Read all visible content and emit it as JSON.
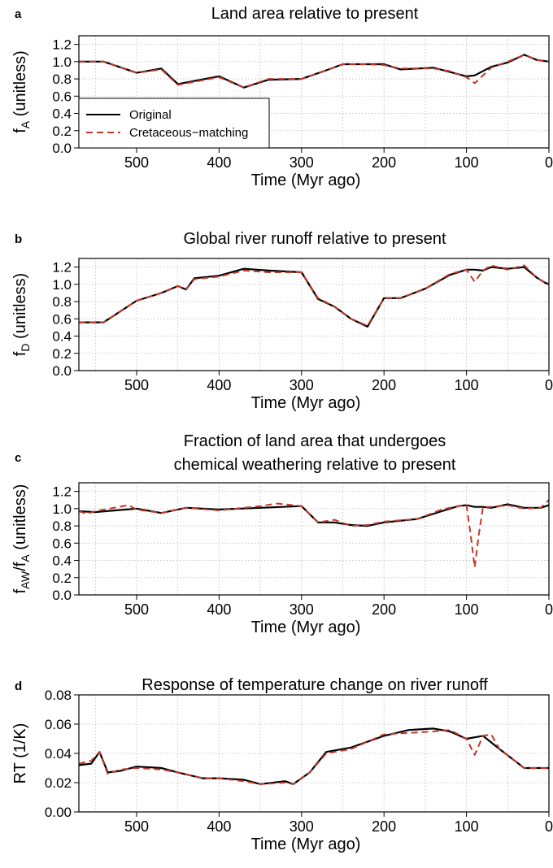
{
  "colors": {
    "original": "#000000",
    "cretaceous": "#c0392b",
    "grid": "#bbbbbb"
  },
  "legend": {
    "items": [
      {
        "label": "Original",
        "style": "solid"
      },
      {
        "label": "Cretaceous−matching",
        "style": "dashed"
      }
    ]
  },
  "chart_data": [
    {
      "type": "line",
      "panel_label": "a",
      "title": [
        "Land area relative to present"
      ],
      "xlabel": "Time (Myr ago)",
      "ylabel": {
        "base": "f",
        "sub": "A",
        "rest": " (unitless)"
      },
      "xlim": [
        570,
        0
      ],
      "ylim": [
        0,
        1.3
      ],
      "xticks": [
        500,
        400,
        300,
        200,
        100,
        0
      ],
      "yticks": [
        "0.0",
        "0.2",
        "0.4",
        "0.6",
        "0.8",
        "1.0",
        "1.2"
      ],
      "grid": true,
      "legend": "bottom-left",
      "series": [
        {
          "name": "Original",
          "style": "solid",
          "x": [
            570,
            540,
            500,
            470,
            450,
            400,
            370,
            340,
            300,
            270,
            250,
            220,
            200,
            180,
            140,
            120,
            100,
            90,
            70,
            50,
            30,
            15,
            0
          ],
          "y": [
            1.0,
            1.0,
            0.87,
            0.92,
            0.74,
            0.83,
            0.7,
            0.79,
            0.8,
            0.9,
            0.97,
            0.97,
            0.97,
            0.91,
            0.93,
            0.88,
            0.83,
            0.84,
            0.94,
            0.99,
            1.08,
            1.02,
            1.0
          ]
        },
        {
          "name": "Cretaceous−matching",
          "style": "dashed",
          "x": [
            570,
            540,
            500,
            470,
            450,
            400,
            370,
            340,
            300,
            270,
            250,
            220,
            200,
            180,
            140,
            120,
            100,
            90,
            70,
            50,
            30,
            15,
            0
          ],
          "y": [
            1.0,
            1.0,
            0.87,
            0.91,
            0.73,
            0.82,
            0.7,
            0.8,
            0.8,
            0.9,
            0.97,
            0.97,
            0.96,
            0.92,
            0.92,
            0.89,
            0.82,
            0.75,
            0.93,
            1.0,
            1.08,
            1.02,
            1.0
          ]
        }
      ]
    },
    {
      "type": "line",
      "panel_label": "b",
      "title": [
        "Global river runoff relative to present"
      ],
      "xlabel": "Time (Myr ago)",
      "ylabel": {
        "base": "f",
        "sub": "D",
        "rest": " (unitless)"
      },
      "xlim": [
        570,
        0
      ],
      "ylim": [
        0,
        1.3
      ],
      "xticks": [
        500,
        400,
        300,
        200,
        100,
        0
      ],
      "yticks": [
        "0.0",
        "0.2",
        "0.4",
        "0.6",
        "0.8",
        "1.0",
        "1.2"
      ],
      "grid": true,
      "series": [
        {
          "name": "Original",
          "style": "solid",
          "x": [
            570,
            540,
            500,
            470,
            450,
            440,
            430,
            400,
            370,
            340,
            300,
            280,
            260,
            240,
            220,
            200,
            180,
            150,
            120,
            100,
            90,
            80,
            70,
            50,
            30,
            15,
            5,
            0
          ],
          "y": [
            0.56,
            0.56,
            0.81,
            0.9,
            0.98,
            0.94,
            1.07,
            1.1,
            1.18,
            1.16,
            1.14,
            0.83,
            0.74,
            0.6,
            0.51,
            0.84,
            0.84,
            0.95,
            1.11,
            1.17,
            1.17,
            1.16,
            1.2,
            1.18,
            1.2,
            1.08,
            1.02,
            1.0
          ]
        },
        {
          "name": "Cretaceous−matching",
          "style": "dashed",
          "x": [
            570,
            540,
            500,
            470,
            450,
            440,
            430,
            400,
            370,
            340,
            300,
            280,
            260,
            240,
            220,
            200,
            180,
            150,
            120,
            100,
            90,
            80,
            70,
            50,
            30,
            15,
            5,
            0
          ],
          "y": [
            0.56,
            0.56,
            0.81,
            0.9,
            0.98,
            0.94,
            1.06,
            1.09,
            1.16,
            1.14,
            1.14,
            0.84,
            0.74,
            0.6,
            0.52,
            0.84,
            0.84,
            0.95,
            1.12,
            1.17,
            1.03,
            1.16,
            1.22,
            1.17,
            1.22,
            1.08,
            1.02,
            1.0
          ]
        }
      ]
    },
    {
      "type": "line",
      "panel_label": "c",
      "title": [
        "Fraction of land area that undergoes",
        "chemical weathering relative to present"
      ],
      "xlabel": "Time (Myr ago)",
      "ylabel": {
        "base": "f",
        "sub": "AW",
        "mid": "/f",
        "sub2": "A",
        "rest": " (unitless)"
      },
      "xlim": [
        570,
        0
      ],
      "ylim": [
        0,
        1.3
      ],
      "xticks": [
        500,
        400,
        300,
        200,
        100,
        0
      ],
      "yticks": [
        "0.0",
        "0.2",
        "0.4",
        "0.6",
        "0.8",
        "1.0",
        "1.2"
      ],
      "grid": true,
      "series": [
        {
          "name": "Original",
          "style": "solid",
          "x": [
            570,
            550,
            500,
            470,
            440,
            400,
            350,
            300,
            280,
            260,
            240,
            220,
            200,
            160,
            130,
            110,
            100,
            90,
            80,
            70,
            50,
            30,
            10,
            0
          ],
          "y": [
            0.97,
            0.96,
            1.0,
            0.95,
            1.01,
            0.99,
            1.01,
            1.03,
            0.84,
            0.84,
            0.81,
            0.8,
            0.84,
            0.88,
            0.97,
            1.03,
            1.04,
            1.02,
            1.02,
            1.01,
            1.05,
            1.01,
            1.01,
            1.04
          ]
        },
        {
          "name": "Cretaceous−matching",
          "style": "dashed",
          "x": [
            570,
            560,
            550,
            510,
            500,
            470,
            440,
            400,
            350,
            330,
            300,
            280,
            260,
            240,
            220,
            200,
            160,
            130,
            110,
            100,
            95,
            90,
            85,
            80,
            70,
            50,
            30,
            10,
            0
          ],
          "y": [
            0.97,
            0.94,
            0.97,
            1.04,
            0.99,
            0.95,
            1.01,
            0.98,
            1.03,
            1.06,
            1.03,
            0.84,
            0.87,
            0.8,
            0.81,
            0.85,
            0.88,
            0.99,
            1.03,
            1.04,
            0.7,
            0.32,
            0.7,
            1.02,
            1.02,
            1.04,
            1.0,
            1.01,
            1.1
          ]
        }
      ]
    },
    {
      "type": "line",
      "panel_label": "d",
      "title": [
        "Response of temperature change on river runoff"
      ],
      "xlabel": "Time (Myr ago)",
      "ylabel": {
        "base": "RT (1/K)"
      },
      "xlim": [
        570,
        0
      ],
      "ylim": [
        0,
        0.08
      ],
      "xticks": [
        500,
        400,
        300,
        200,
        100,
        0
      ],
      "yticks": [
        "0.00",
        "0.02",
        "0.04",
        "0.06",
        "0.08"
      ],
      "grid": true,
      "series": [
        {
          "name": "Original",
          "style": "solid",
          "x": [
            570,
            555,
            545,
            535,
            520,
            500,
            470,
            450,
            420,
            400,
            370,
            350,
            320,
            310,
            290,
            270,
            240,
            200,
            170,
            140,
            120,
            100,
            80,
            60,
            30,
            10,
            0
          ],
          "y": [
            0.032,
            0.033,
            0.041,
            0.027,
            0.028,
            0.031,
            0.03,
            0.027,
            0.023,
            0.023,
            0.022,
            0.019,
            0.021,
            0.019,
            0.027,
            0.041,
            0.044,
            0.052,
            0.056,
            0.057,
            0.055,
            0.05,
            0.052,
            0.043,
            0.03,
            0.03,
            0.03
          ]
        },
        {
          "name": "Cretaceous−matching",
          "style": "dashed",
          "x": [
            570,
            555,
            545,
            535,
            520,
            500,
            470,
            450,
            420,
            400,
            370,
            350,
            320,
            310,
            290,
            270,
            240,
            200,
            170,
            140,
            120,
            100,
            90,
            80,
            70,
            60,
            30,
            10,
            0
          ],
          "y": [
            0.033,
            0.035,
            0.041,
            0.026,
            0.029,
            0.03,
            0.029,
            0.027,
            0.023,
            0.023,
            0.021,
            0.019,
            0.02,
            0.019,
            0.027,
            0.04,
            0.043,
            0.053,
            0.054,
            0.055,
            0.056,
            0.05,
            0.039,
            0.052,
            0.053,
            0.043,
            0.03,
            0.03,
            0.03
          ]
        }
      ]
    }
  ]
}
